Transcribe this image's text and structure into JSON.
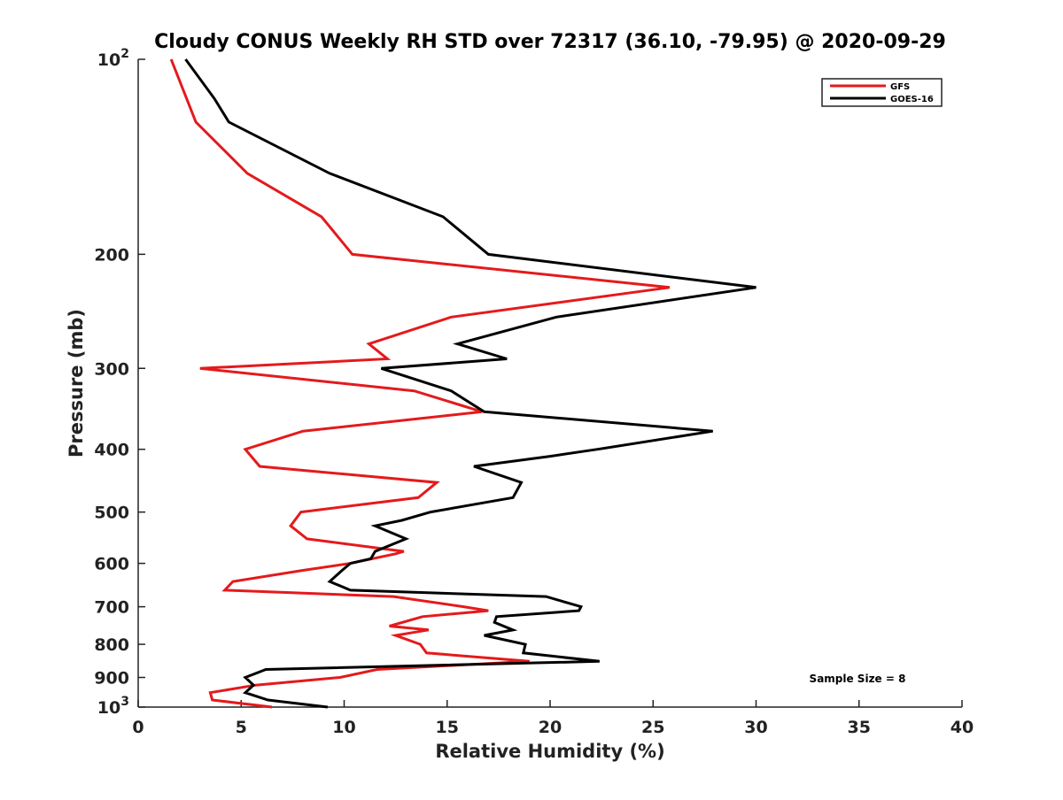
{
  "chart_data": {
    "type": "line",
    "title": "Cloudy CONUS Weekly RH STD over 72317 (36.10, -79.95) @ 2020-09-29",
    "xlabel": "Relative Humidity (%)",
    "ylabel": "Pressure (mb)",
    "xlim": [
      0,
      40
    ],
    "ylim": [
      100,
      1000
    ],
    "y_scale": "log",
    "y_reversed": true,
    "x_ticks": [
      0,
      5,
      10,
      15,
      20,
      25,
      30,
      35,
      40
    ],
    "x_tick_labels": [
      "0",
      "5",
      "10",
      "15",
      "20",
      "25",
      "30",
      "35",
      "40"
    ],
    "y_ticks": [
      100,
      200,
      300,
      400,
      500,
      600,
      700,
      800,
      900,
      1000
    ],
    "y_tick_labels": [
      {
        "base": "10",
        "exp": "2"
      },
      {
        "base": "200",
        "exp": ""
      },
      {
        "base": "300",
        "exp": ""
      },
      {
        "base": "400",
        "exp": ""
      },
      {
        "base": "500",
        "exp": ""
      },
      {
        "base": "600",
        "exp": ""
      },
      {
        "base": "700",
        "exp": ""
      },
      {
        "base": "800",
        "exp": ""
      },
      {
        "base": "900",
        "exp": ""
      },
      {
        "base": "10",
        "exp": "3"
      }
    ],
    "grid": false,
    "legend_position": "top-right",
    "annotation": "Sample Size = 8",
    "series": [
      {
        "name": "GFS",
        "color": "#e41a1c",
        "points": [
          [
            1.6,
            100
          ],
          [
            2.8,
            125
          ],
          [
            5.3,
            150
          ],
          [
            8.9,
            175
          ],
          [
            10.4,
            200
          ],
          [
            25.8,
            225
          ],
          [
            15.2,
            250
          ],
          [
            11.2,
            275
          ],
          [
            12.1,
            290
          ],
          [
            3.0,
            300
          ],
          [
            13.4,
            325
          ],
          [
            16.7,
            350
          ],
          [
            8.0,
            375
          ],
          [
            5.2,
            400
          ],
          [
            5.9,
            425
          ],
          [
            14.5,
            450
          ],
          [
            13.6,
            475
          ],
          [
            7.9,
            500
          ],
          [
            7.4,
            525
          ],
          [
            8.2,
            550
          ],
          [
            12.9,
            575
          ],
          [
            12.5,
            580
          ],
          [
            10.3,
            600
          ],
          [
            8.0,
            615
          ],
          [
            4.6,
            640
          ],
          [
            4.2,
            660
          ],
          [
            12.4,
            675
          ],
          [
            15.8,
            700
          ],
          [
            17.0,
            710
          ],
          [
            13.8,
            725
          ],
          [
            12.2,
            750
          ],
          [
            14.1,
            760
          ],
          [
            12.5,
            775
          ],
          [
            13.7,
            800
          ],
          [
            14.0,
            825
          ],
          [
            19.0,
            850
          ],
          [
            11.6,
            875
          ],
          [
            9.8,
            900
          ],
          [
            5.7,
            925
          ],
          [
            3.5,
            950
          ],
          [
            3.6,
            975
          ],
          [
            6.5,
            1000
          ]
        ]
      },
      {
        "name": "GOES-16",
        "color": "#000000",
        "points": [
          [
            2.3,
            100
          ],
          [
            3.7,
            115
          ],
          [
            4.4,
            125
          ],
          [
            9.3,
            150
          ],
          [
            14.8,
            175
          ],
          [
            17.0,
            200
          ],
          [
            30.0,
            225
          ],
          [
            20.3,
            250
          ],
          [
            15.5,
            275
          ],
          [
            17.9,
            290
          ],
          [
            11.8,
            300
          ],
          [
            15.2,
            325
          ],
          [
            16.8,
            350
          ],
          [
            27.9,
            375
          ],
          [
            22.3,
            400
          ],
          [
            20.0,
            410
          ],
          [
            16.3,
            425
          ],
          [
            18.6,
            450
          ],
          [
            18.2,
            475
          ],
          [
            14.2,
            500
          ],
          [
            12.8,
            515
          ],
          [
            11.5,
            525
          ],
          [
            13.0,
            550
          ],
          [
            11.5,
            575
          ],
          [
            11.3,
            590
          ],
          [
            10.3,
            600
          ],
          [
            9.9,
            615
          ],
          [
            9.3,
            640
          ],
          [
            10.3,
            660
          ],
          [
            19.8,
            675
          ],
          [
            21.5,
            700
          ],
          [
            21.4,
            710
          ],
          [
            17.4,
            725
          ],
          [
            17.3,
            740
          ],
          [
            18.2,
            760
          ],
          [
            16.8,
            775
          ],
          [
            18.8,
            800
          ],
          [
            18.7,
            825
          ],
          [
            22.4,
            850
          ],
          [
            6.2,
            875
          ],
          [
            5.2,
            900
          ],
          [
            5.6,
            925
          ],
          [
            5.2,
            950
          ],
          [
            6.3,
            975
          ],
          [
            9.2,
            1000
          ]
        ]
      }
    ]
  }
}
